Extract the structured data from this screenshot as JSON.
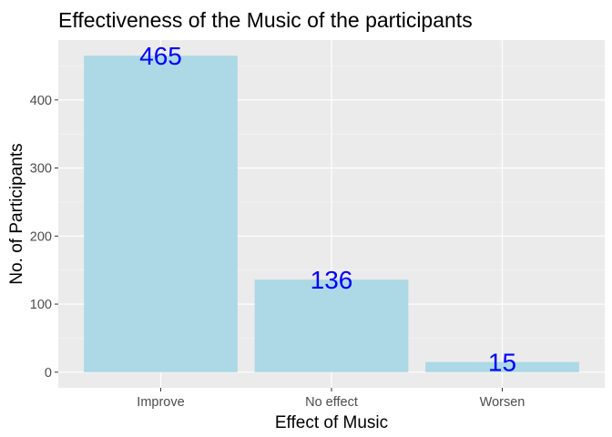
{
  "chart_data": {
    "type": "bar",
    "title": "Effectiveness of the Music of the participants",
    "xlabel": "Effect of Music",
    "ylabel": "No. of Participants",
    "categories": [
      "Improve",
      "No effect",
      "Worsen"
    ],
    "values": [
      465,
      136,
      15
    ],
    "data_labels": [
      "465",
      "136",
      "15"
    ],
    "ylim": [
      -23,
      488
    ],
    "yticks": [
      0,
      100,
      200,
      300,
      400
    ],
    "ytick_labels": [
      "0",
      "100",
      "200",
      "300",
      "400"
    ],
    "grid": true,
    "legend": "none",
    "colors": {
      "bar": "#add8e6",
      "data_label": "#0000ff",
      "panel": "#ebebeb",
      "grid_major": "#ffffff",
      "grid_minor": "#f5f5f5"
    }
  }
}
